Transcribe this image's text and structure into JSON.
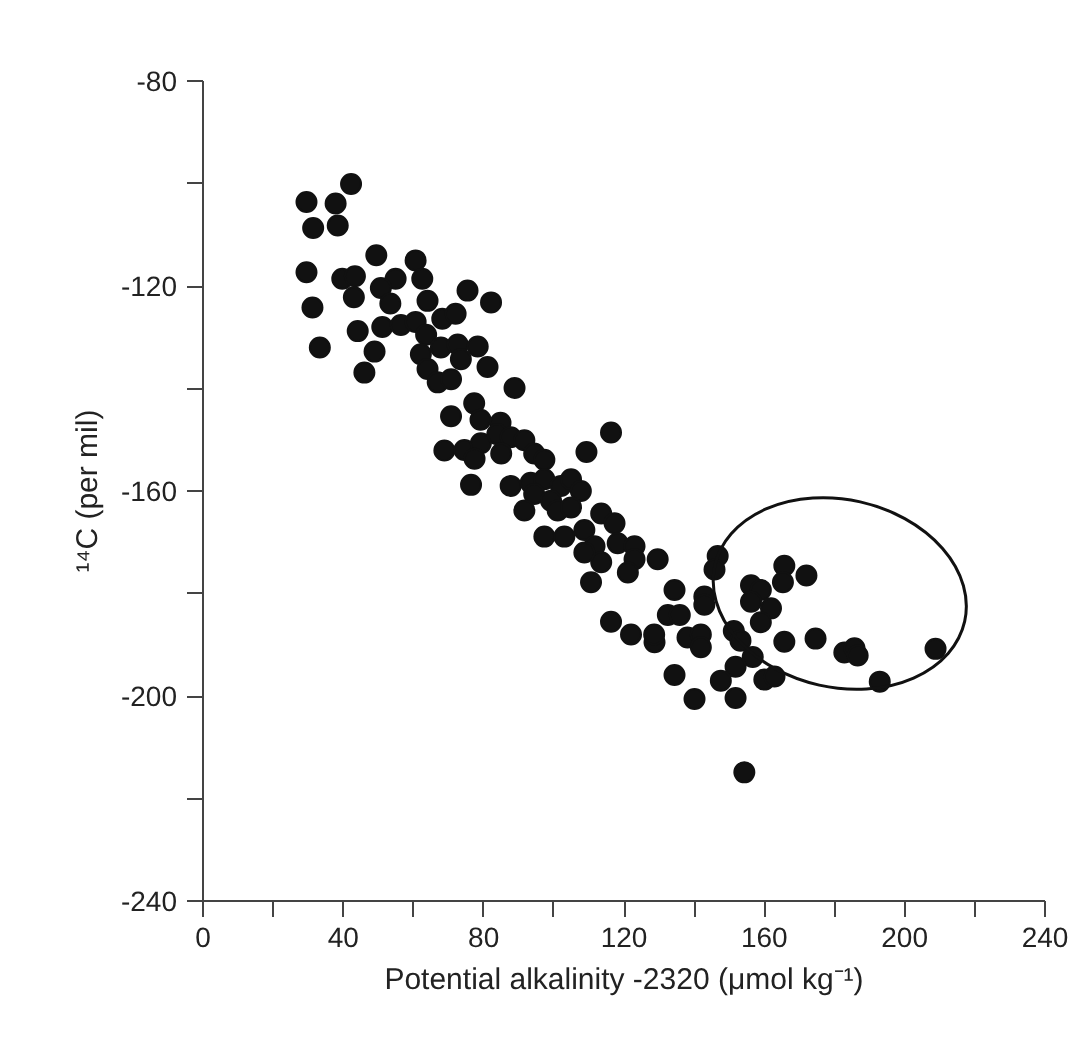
{
  "chart_data": {
    "type": "scatter",
    "xlabel": "Potential alkalinity -2320 (μmol kg⁻¹)",
    "ylabel": "¹⁴C (per mil)",
    "xlim": [
      0,
      240
    ],
    "ylim": [
      -240,
      -80
    ],
    "xticks": [
      0,
      {
        "value": 20,
        "label": null
      },
      40,
      {
        "value": 60,
        "label": null
      },
      80,
      {
        "value": 100,
        "label": null
      },
      120,
      {
        "value": 140,
        "label": null
      },
      160,
      {
        "value": 180,
        "label": null
      },
      200,
      {
        "value": 220,
        "label": null
      },
      240
    ],
    "yticks": [
      -80,
      {
        "value": -100,
        "label": null
      },
      -120,
      {
        "value": -140,
        "label": null
      },
      -160,
      {
        "value": -180,
        "label": null
      },
      -200,
      {
        "value": -220,
        "label": null
      },
      -240
    ],
    "grid": false,
    "marker": "circle",
    "series": [
      {
        "color": "#111111",
        "x": [
          42.2,
          29.5,
          37.8,
          31.4,
          38.4,
          29.5,
          49.4,
          60.6,
          39.7,
          43.3,
          54.9,
          62.5,
          50.7,
          43.0,
          31.2,
          53.4,
          64.0,
          75.4,
          82.1,
          68.2,
          72.0,
          44.1,
          51.1,
          56.4,
          60.6,
          63.6,
          48.9,
          33.3,
          62.1,
          67.8,
          72.6,
          78.3,
          73.5,
          81.1,
          46.0,
          64.0,
          66.9,
          70.7,
          88.8,
          77.3,
          70.7,
          84.8,
          79.1,
          116.3,
          109.3,
          68.8,
          74.5,
          79.2,
          83.9,
          87.7,
          91.6,
          94.4,
          97.3,
          85.0,
          77.4,
          76.4,
          87.7,
          93.4,
          97.3,
          102.0,
          104.9,
          107.7,
          94.4,
          99.2,
          91.6,
          101.1,
          104.9,
          97.3,
          103.0,
          108.7,
          113.5,
          117.3,
          111.6,
          118.2,
          123.0,
          123.0,
          113.5,
          108.7,
          121.1,
          110.6,
          129.6,
          134.4,
          142.9,
          142.9,
          146.7,
          145.8,
          138.1,
          141.9,
          141.9,
          151.3,
          153.2,
          156.7,
          151.8,
          147.6,
          134.4,
          140.1,
          151.8,
          160.0,
          162.9,
          165.7,
          172.0,
          165.3,
          156.2,
          159.0,
          156.2,
          161.9,
          159.0,
          165.7,
          174.6,
          182.8,
          185.7,
          186.6,
          192.9,
          208.8,
          154.3,
          128.7,
          116.3,
          122.0,
          128.6,
          132.5,
          135.9
        ],
        "values": [
          -100.1,
          -103.6,
          -103.9,
          -108.7,
          -108.2,
          -117.3,
          -114.0,
          -115.0,
          -118.6,
          -118.1,
          -118.6,
          -118.6,
          -120.4,
          -122.2,
          -124.2,
          -123.4,
          -122.9,
          -120.9,
          -123.2,
          -126.4,
          -125.4,
          -128.8,
          -128.0,
          -127.6,
          -127.0,
          -129.5,
          -132.8,
          -132.0,
          -133.3,
          -132.0,
          -131.4,
          -131.8,
          -134.3,
          -135.8,
          -136.9,
          -136.2,
          -138.8,
          -138.2,
          -139.9,
          -142.9,
          -145.4,
          -146.7,
          -146.1,
          -148.6,
          -152.4,
          -152.1,
          -152.0,
          -150.7,
          -148.9,
          -149.5,
          -150.1,
          -152.7,
          -153.9,
          -152.7,
          -153.7,
          -158.8,
          -159.0,
          -158.4,
          -157.7,
          -159.0,
          -157.7,
          -160.0,
          -160.6,
          -161.9,
          -163.8,
          -163.8,
          -163.2,
          -168.9,
          -168.9,
          -167.6,
          -164.4,
          -166.3,
          -170.8,
          -170.2,
          -170.8,
          -173.3,
          -173.9,
          -172.0,
          -175.9,
          -177.8,
          -173.3,
          -179.3,
          -180.6,
          -182.2,
          -172.7,
          -175.3,
          -188.6,
          -188.0,
          -190.5,
          -187.3,
          -189.2,
          -192.4,
          -194.3,
          -197.0,
          -195.9,
          -200.6,
          -200.4,
          -196.8,
          -196.2,
          -174.6,
          -176.5,
          -177.8,
          -178.4,
          -179.3,
          -181.6,
          -182.9,
          -185.6,
          -189.4,
          -188.8,
          -191.5,
          -190.7,
          -192.1,
          -197.2,
          -190.8,
          -214.9,
          -189.5,
          -185.5,
          -188.0,
          -188.0,
          -184.2,
          -184.2
        ]
      }
    ]
  }
}
